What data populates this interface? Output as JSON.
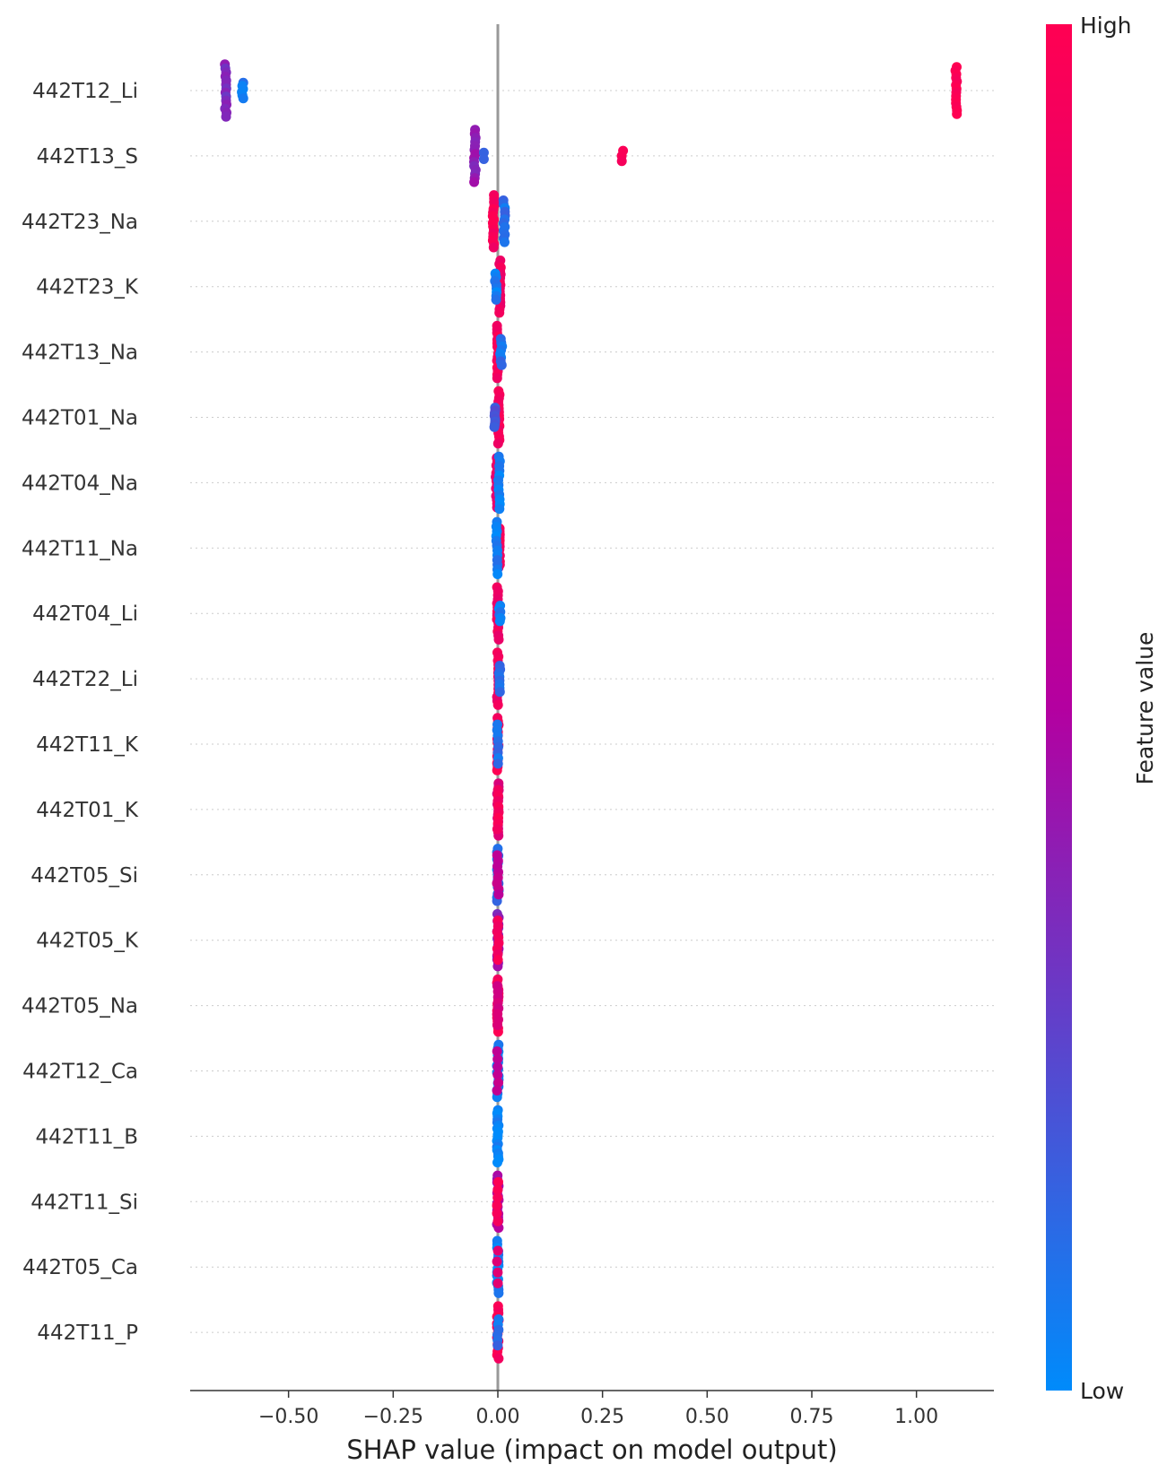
{
  "chart_data": {
    "type": "scatter",
    "subtype": "shap-beeswarm",
    "xlabel": "SHAP value (impact on model output)",
    "xticks": [
      -0.5,
      -0.25,
      0.0,
      0.25,
      0.5,
      0.75,
      1.0
    ],
    "xtick_labels": [
      "−0.50",
      "−0.25",
      "0.00",
      "0.25",
      "0.50",
      "0.75",
      "1.00"
    ],
    "xlim": [
      -0.735,
      1.185
    ],
    "zero_line": true,
    "grid": "dotted horizontal per feature",
    "colorbar": {
      "label": "Feature value",
      "high_label": "High",
      "low_label": "Low",
      "low_color": "#008bfb",
      "mid_color": "#b400a0",
      "high_color": "#ff0052"
    },
    "features": [
      {
        "name": "442T12_Li",
        "points": [
          {
            "x": -0.65,
            "v": 0.35,
            "n": 14,
            "spread": 0.4
          },
          {
            "x": -0.61,
            "v": 0.05,
            "n": 6,
            "spread": 0.12
          },
          {
            "x": 1.095,
            "v": 1.0,
            "n": 14,
            "spread": 0.36
          }
        ]
      },
      {
        "name": "442T13_S",
        "points": [
          {
            "x": -0.055,
            "v": 0.4,
            "n": 14,
            "spread": 0.4
          },
          {
            "x": -0.035,
            "v": 0.1,
            "n": 2,
            "spread": 0.05
          },
          {
            "x": 0.298,
            "v": 1.0,
            "n": 3,
            "spread": 0.08
          }
        ]
      },
      {
        "name": "442T23_Na",
        "points": [
          {
            "x": -0.01,
            "v": 0.95,
            "n": 16,
            "spread": 0.4
          },
          {
            "x": 0.015,
            "v": 0.1,
            "n": 12,
            "spread": 0.32
          }
        ]
      },
      {
        "name": "442T23_K",
        "points": [
          {
            "x": 0.005,
            "v": 0.9,
            "n": 16,
            "spread": 0.4
          },
          {
            "x": -0.005,
            "v": 0.05,
            "n": 8,
            "spread": 0.2
          }
        ]
      },
      {
        "name": "442T13_Na",
        "points": [
          {
            "x": 0.0,
            "v": 0.95,
            "n": 16,
            "spread": 0.4
          },
          {
            "x": 0.008,
            "v": 0.1,
            "n": 8,
            "spread": 0.2
          }
        ]
      },
      {
        "name": "442T01_Na",
        "points": [
          {
            "x": 0.002,
            "v": 0.92,
            "n": 16,
            "spread": 0.4
          },
          {
            "x": -0.008,
            "v": 0.2,
            "n": 8,
            "spread": 0.15
          }
        ]
      },
      {
        "name": "442T04_Na",
        "points": [
          {
            "x": -0.003,
            "v": 0.85,
            "n": 14,
            "spread": 0.38
          },
          {
            "x": 0.003,
            "v": 0.05,
            "n": 12,
            "spread": 0.4
          }
        ]
      },
      {
        "name": "442T11_Na",
        "points": [
          {
            "x": 0.003,
            "v": 0.95,
            "n": 14,
            "spread": 0.3
          },
          {
            "x": -0.002,
            "v": 0.05,
            "n": 12,
            "spread": 0.4
          }
        ]
      },
      {
        "name": "442T04_Li",
        "points": [
          {
            "x": 0.0,
            "v": 0.9,
            "n": 14,
            "spread": 0.4
          },
          {
            "x": 0.005,
            "v": 0.05,
            "n": 6,
            "spread": 0.12
          }
        ]
      },
      {
        "name": "442T22_Li",
        "points": [
          {
            "x": 0.0,
            "v": 0.9,
            "n": 14,
            "spread": 0.4
          },
          {
            "x": 0.004,
            "v": 0.1,
            "n": 8,
            "spread": 0.2
          }
        ]
      },
      {
        "name": "442T11_K",
        "points": [
          {
            "x": 0.0,
            "v": 0.95,
            "n": 16,
            "spread": 0.4
          },
          {
            "x": 0.0,
            "v": 0.1,
            "n": 8,
            "spread": 0.3
          }
        ]
      },
      {
        "name": "442T01_K",
        "points": [
          {
            "x": 0.0,
            "v": 0.75,
            "n": 16,
            "spread": 0.4
          },
          {
            "x": 0.0,
            "v": 0.95,
            "n": 8,
            "spread": 0.3
          }
        ]
      },
      {
        "name": "442T05_Si",
        "points": [
          {
            "x": 0.0,
            "v": 0.1,
            "n": 16,
            "spread": 0.4
          },
          {
            "x": 0.0,
            "v": 0.6,
            "n": 8,
            "spread": 0.3
          }
        ]
      },
      {
        "name": "442T05_K",
        "points": [
          {
            "x": 0.0,
            "v": 0.4,
            "n": 16,
            "spread": 0.4
          },
          {
            "x": 0.0,
            "v": 0.95,
            "n": 8,
            "spread": 0.3
          }
        ]
      },
      {
        "name": "442T05_Na",
        "points": [
          {
            "x": 0.0,
            "v": 0.95,
            "n": 16,
            "spread": 0.4
          },
          {
            "x": 0.0,
            "v": 0.7,
            "n": 8,
            "spread": 0.3
          }
        ]
      },
      {
        "name": "442T12_Ca",
        "points": [
          {
            "x": 0.0,
            "v": 0.05,
            "n": 16,
            "spread": 0.4
          },
          {
            "x": 0.0,
            "v": 0.6,
            "n": 6,
            "spread": 0.3
          }
        ]
      },
      {
        "name": "442T11_B",
        "points": [
          {
            "x": 0.0,
            "v": 0.02,
            "n": 18,
            "spread": 0.4
          }
        ]
      },
      {
        "name": "442T11_Si",
        "points": [
          {
            "x": 0.0,
            "v": 0.5,
            "n": 16,
            "spread": 0.4
          },
          {
            "x": 0.0,
            "v": 0.95,
            "n": 6,
            "spread": 0.3
          }
        ]
      },
      {
        "name": "442T05_Ca",
        "points": [
          {
            "x": 0.0,
            "v": 0.05,
            "n": 16,
            "spread": 0.4
          },
          {
            "x": 0.0,
            "v": 0.8,
            "n": 4,
            "spread": 0.25
          }
        ]
      },
      {
        "name": "442T11_P",
        "points": [
          {
            "x": 0.0,
            "v": 0.98,
            "n": 16,
            "spread": 0.4
          },
          {
            "x": 0.0,
            "v": 0.1,
            "n": 6,
            "spread": 0.2
          }
        ]
      }
    ]
  }
}
